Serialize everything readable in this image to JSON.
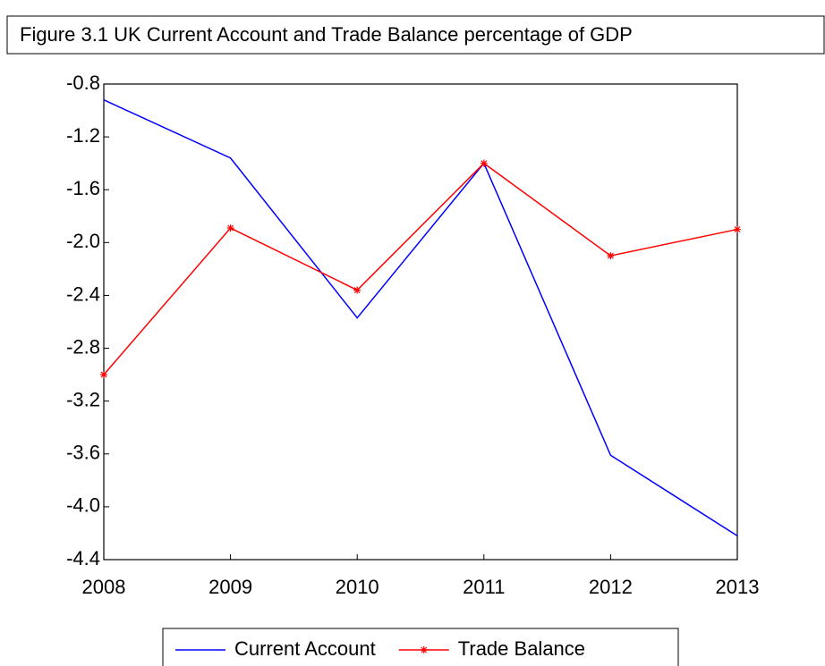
{
  "chart_data": {
    "type": "line",
    "title": "Figure 3.1 UK Current Account and Trade Balance percentage of GDP",
    "x": [
      2008,
      2009,
      2010,
      2011,
      2012,
      2013
    ],
    "xlim": [
      2008,
      2013
    ],
    "xticks": [
      2008,
      2009,
      2010,
      2011,
      2012,
      2013
    ],
    "ylim": [
      -4.4,
      -0.8
    ],
    "yticks": [
      -4.4,
      {
        "value": -4,
        "label": "-4.0"
      },
      -3.6,
      -3.2,
      -2.8,
      -2.4,
      {
        "value": -2,
        "label": "-2.0"
      },
      -1.6,
      -1.2,
      -0.8
    ],
    "series": [
      {
        "name": "Current Account",
        "color": "#0000ff",
        "marker": false,
        "values": [
          -0.92,
          -1.36,
          -2.57,
          -1.4,
          -3.61,
          -4.22
        ]
      },
      {
        "name": "Trade Balance",
        "color": "#ff0000",
        "marker": true,
        "values": [
          -3.0,
          -1.89,
          -2.36,
          -1.4,
          -2.1,
          -1.9
        ]
      }
    ],
    "legend": "bottom"
  }
}
